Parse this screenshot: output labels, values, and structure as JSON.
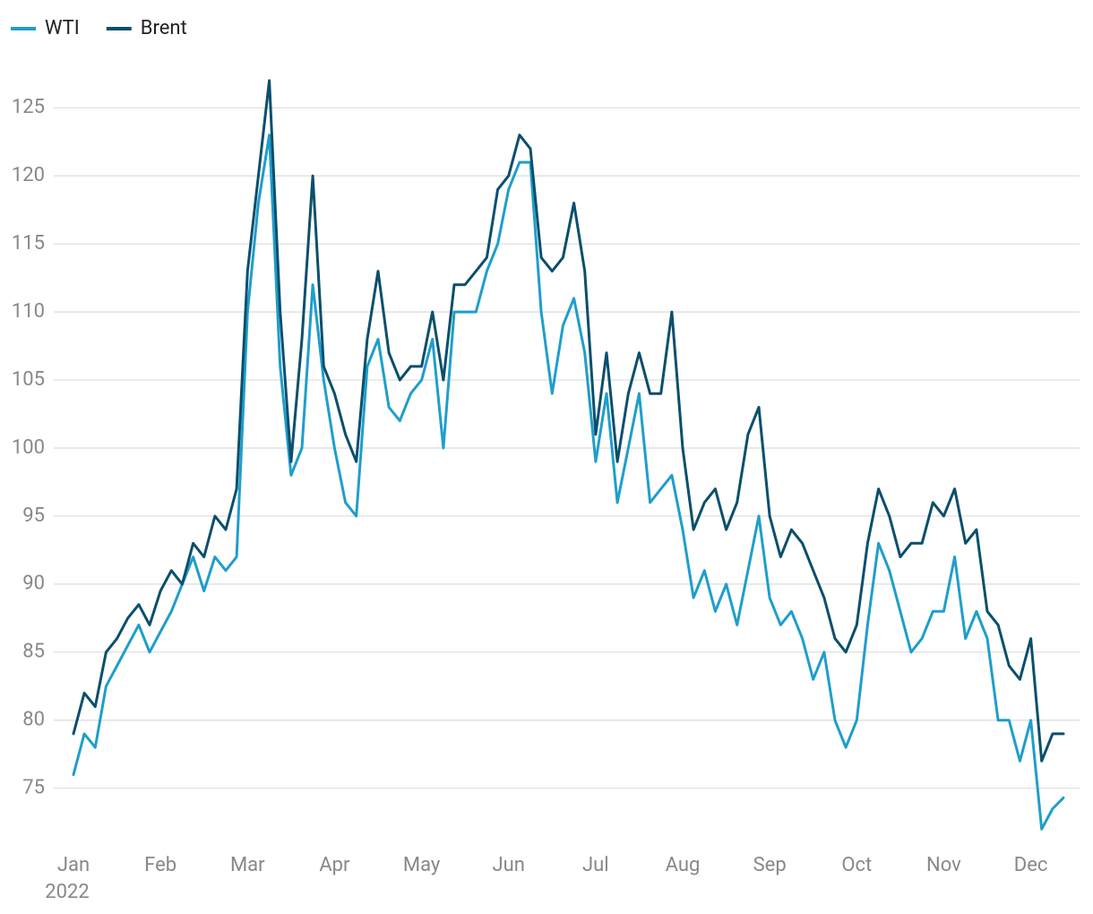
{
  "chart_data": {
    "type": "line",
    "categories": [
      "Jan",
      null,
      null,
      null,
      null,
      null,
      null,
      null,
      "Feb",
      null,
      null,
      null,
      null,
      null,
      null,
      null,
      "Mar",
      null,
      null,
      null,
      null,
      null,
      null,
      null,
      "Apr",
      null,
      null,
      null,
      null,
      null,
      null,
      null,
      "May",
      null,
      null,
      null,
      null,
      null,
      null,
      null,
      "Jun",
      null,
      null,
      null,
      null,
      null,
      null,
      null,
      "Jul",
      null,
      null,
      null,
      null,
      null,
      null,
      null,
      "Aug",
      null,
      null,
      null,
      null,
      null,
      null,
      null,
      "Sep",
      null,
      null,
      null,
      null,
      null,
      null,
      null,
      "Oct",
      null,
      null,
      null,
      null,
      null,
      null,
      null,
      "Nov",
      null,
      null,
      null,
      null,
      null,
      null,
      null,
      "Dec",
      null,
      null,
      null
    ],
    "year_label": "2022",
    "series": [
      {
        "name": "WTI",
        "color": "#1f9ecb",
        "values": [
          76,
          79,
          78,
          82.5,
          84,
          85.5,
          87,
          85,
          86.5,
          88,
          90,
          92,
          89.5,
          92,
          91,
          92,
          110,
          118,
          123,
          106,
          98,
          100,
          112,
          105,
          100,
          96,
          95,
          106,
          108,
          103,
          102,
          104,
          105,
          108,
          100,
          110,
          110,
          110,
          113,
          115,
          119,
          121,
          121,
          110,
          104,
          109,
          111,
          107,
          99,
          104,
          96,
          100,
          104,
          96,
          97,
          98,
          94,
          89,
          91,
          88,
          90,
          87,
          91,
          95,
          89,
          87,
          88,
          86,
          83,
          85,
          80,
          78,
          80,
          87,
          93,
          91,
          88,
          85,
          86,
          88,
          88,
          92,
          86,
          88,
          86,
          80,
          80,
          77,
          80,
          72,
          73.5,
          74.3
        ]
      },
      {
        "name": "Brent",
        "color": "#0b4f6c",
        "values": [
          79,
          82,
          81,
          85,
          86,
          87.5,
          88.5,
          87,
          89.5,
          91,
          90,
          93,
          92,
          95,
          94,
          97,
          113,
          120,
          127,
          110,
          99,
          108,
          120,
          106,
          104,
          101,
          99,
          108,
          113,
          107,
          105,
          106,
          106,
          110,
          105,
          112,
          112,
          113,
          114,
          119,
          120,
          123,
          122,
          114,
          113,
          114,
          118,
          113,
          101,
          107,
          99,
          104,
          107,
          104,
          104,
          110,
          100,
          94,
          96,
          97,
          94,
          96,
          101,
          103,
          95,
          92,
          94,
          93,
          91,
          89,
          86,
          85,
          87,
          93,
          97,
          95,
          92,
          93,
          93,
          96,
          95,
          97,
          93,
          94,
          88,
          87,
          84,
          83,
          86,
          77,
          79,
          79
        ]
      }
    ],
    "ylim": [
      70.7,
      129.3
    ],
    "yticks": [
      75,
      80,
      85,
      90,
      95,
      100,
      105,
      110,
      115,
      120,
      125
    ],
    "grid": true,
    "legend": "top-left"
  }
}
